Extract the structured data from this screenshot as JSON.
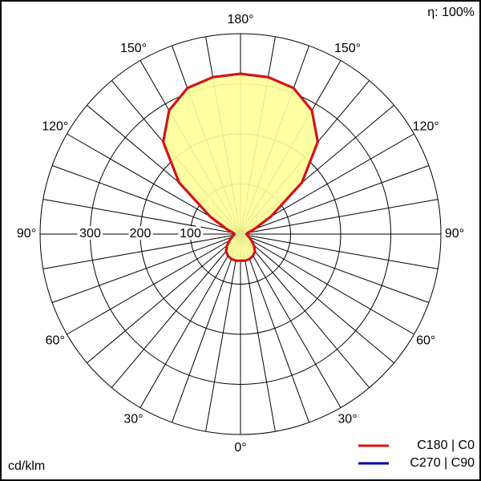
{
  "chart_data": {
    "type": "polar",
    "efficiency": "η: 100%",
    "unit": "cd/klm",
    "angles": [
      0,
      10,
      20,
      30,
      40,
      50,
      60,
      70,
      80,
      90,
      100,
      110,
      120,
      130,
      140,
      150,
      160,
      170,
      180
    ],
    "series": [
      {
        "name": "C270 | C90",
        "color": "#0000aa",
        "values": [
          53,
          54,
          53,
          50,
          45,
          35,
          25,
          18,
          14,
          12,
          15,
          30,
          70,
          160,
          240,
          285,
          310,
          318,
          320
        ]
      },
      {
        "name": "C180 | C0",
        "color": "#dd1111",
        "values": [
          53,
          54,
          53,
          50,
          45,
          35,
          25,
          18,
          14,
          12,
          15,
          30,
          70,
          160,
          240,
          285,
          310,
          318,
          320
        ]
      }
    ],
    "fill_color": "#ffff99",
    "rlim": [
      0,
      400
    ],
    "rticks": [
      100,
      200,
      300
    ],
    "angle_ticks": [
      {
        "value": 0,
        "label": "0°"
      },
      {
        "value": 30,
        "label": "30°"
      },
      {
        "value": 60,
        "label": "60°"
      },
      {
        "value": 90,
        "label": "90°"
      },
      {
        "value": 120,
        "label": "120°"
      },
      {
        "value": 150,
        "label": "150°"
      },
      {
        "value": 180,
        "label": "180°"
      }
    ]
  }
}
